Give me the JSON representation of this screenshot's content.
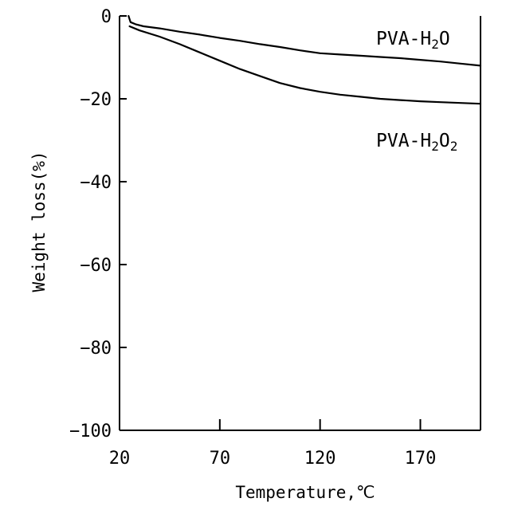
{
  "chart_data": {
    "type": "line",
    "xlabel": "Temperature,℃",
    "ylabel": "Weight loss(%)",
    "xlim": [
      20,
      200
    ],
    "ylim": [
      -100,
      0
    ],
    "xticks": [
      20,
      70,
      120,
      170
    ],
    "yticks": [
      0,
      -20,
      -40,
      -60,
      -80,
      -100
    ],
    "grid": false,
    "series": [
      {
        "name": "PVA-H2O",
        "label_parts": {
          "a": "PVA-H",
          "sub1": "2",
          "b": "O",
          "sub2": ""
        },
        "points": [
          [
            24.5,
            0
          ],
          [
            25.5,
            -1.5
          ],
          [
            28,
            -2
          ],
          [
            32,
            -2.5
          ],
          [
            40,
            -3
          ],
          [
            50,
            -3.8
          ],
          [
            60,
            -4.5
          ],
          [
            70,
            -5.3
          ],
          [
            80,
            -6
          ],
          [
            90,
            -6.8
          ],
          [
            100,
            -7.5
          ],
          [
            110,
            -8.3
          ],
          [
            120,
            -9
          ],
          [
            130,
            -9.3
          ],
          [
            140,
            -9.6
          ],
          [
            150,
            -9.9
          ],
          [
            160,
            -10.2
          ],
          [
            170,
            -10.6
          ],
          [
            180,
            -11
          ],
          [
            190,
            -11.5
          ],
          [
            200,
            -12
          ]
        ]
      },
      {
        "name": "PVA-H2O2",
        "label_parts": {
          "a": "PVA-H",
          "sub1": "2",
          "b": "O",
          "sub2": "2"
        },
        "points": [
          [
            25,
            -2.5
          ],
          [
            30,
            -3.5
          ],
          [
            40,
            -5
          ],
          [
            50,
            -6.8
          ],
          [
            60,
            -8.8
          ],
          [
            70,
            -10.8
          ],
          [
            80,
            -12.8
          ],
          [
            90,
            -14.5
          ],
          [
            100,
            -16.2
          ],
          [
            110,
            -17.4
          ],
          [
            120,
            -18.3
          ],
          [
            130,
            -19
          ],
          [
            140,
            -19.5
          ],
          [
            150,
            -20
          ],
          [
            160,
            -20.3
          ],
          [
            170,
            -20.6
          ],
          [
            180,
            -20.8
          ],
          [
            190,
            -21
          ],
          [
            200,
            -21.2
          ]
        ]
      }
    ]
  }
}
